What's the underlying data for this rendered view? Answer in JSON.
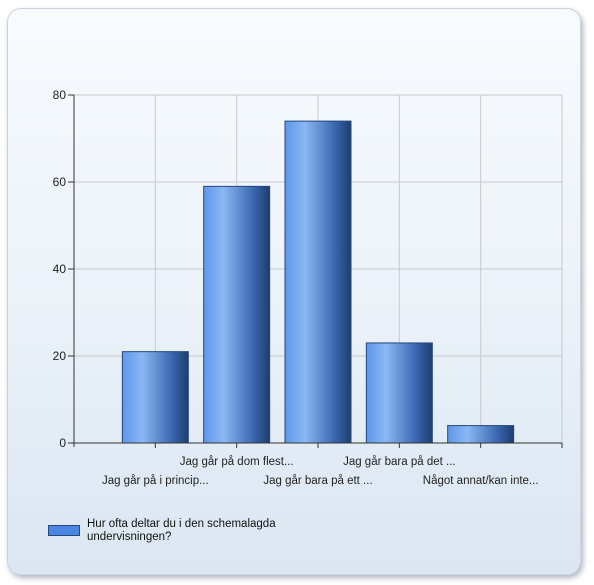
{
  "chart_data": {
    "type": "bar",
    "categories": [
      "Jag går på i princip...",
      "Jag går på dom flest...",
      "Jag går bara på ett ...",
      "Jag går bara på det ...",
      "Något annat/kan inte..."
    ],
    "series": [
      {
        "name": "Hur ofta deltar du i den schemalagda undervisningen?",
        "values": [
          21,
          59,
          74,
          23,
          4
        ]
      }
    ],
    "ylim": [
      0,
      80
    ],
    "yticks": [
      0,
      20,
      40,
      60,
      80
    ],
    "grid": true,
    "legend_position": "bottom-left",
    "colors": {
      "bar": "#4a86e2",
      "bar_dark": "#1e3d6e",
      "grid": "#c9c9c9"
    }
  },
  "legend": {
    "label": "Hur ofta deltar du i den schemalagda undervisningen?"
  }
}
